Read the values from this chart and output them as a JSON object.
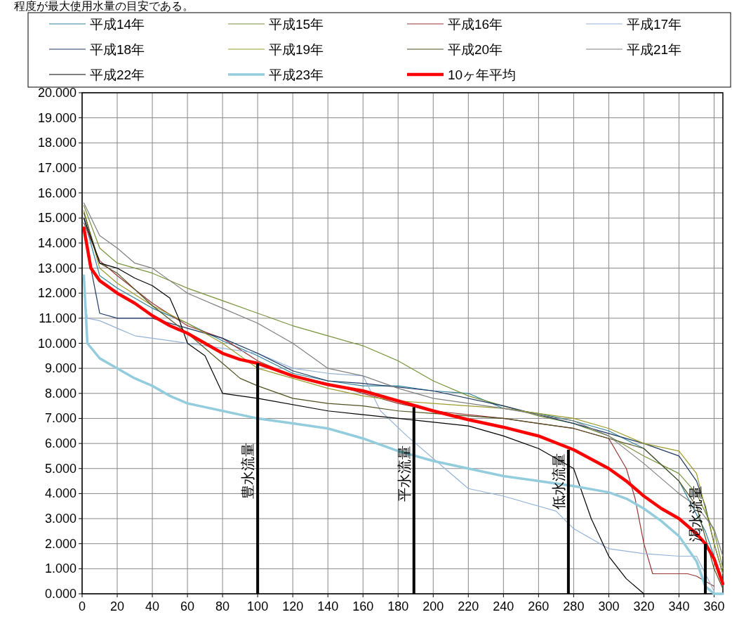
{
  "chart_data": {
    "type": "line",
    "annotations": [
      "程度が最大使用水量の目安である。",
      {
        "text": "豊水流量",
        "x": 100,
        "y": 4.9
      },
      {
        "text": "平水流量",
        "x": 189,
        "y": 4.8
      },
      {
        "text": "低水流量",
        "x": 277,
        "y": 4.5
      },
      {
        "text": "渇水流量",
        "x": 355,
        "y": 3.2
      }
    ],
    "xlim": [
      0,
      365
    ],
    "xticks": [
      0,
      20,
      40,
      60,
      80,
      100,
      120,
      140,
      160,
      180,
      200,
      220,
      240,
      260,
      280,
      300,
      320,
      340,
      360
    ],
    "ylim": [
      0,
      20
    ],
    "yticks": [
      {
        "value": 0,
        "label": "0.000"
      },
      {
        "value": 1,
        "label": "1.000"
      },
      {
        "value": 2,
        "label": "2.000"
      },
      {
        "value": 3,
        "label": "3.000"
      },
      {
        "value": 4,
        "label": "4.000"
      },
      {
        "value": 5,
        "label": "5.000"
      },
      {
        "value": 6,
        "label": "6.000"
      },
      {
        "value": 7,
        "label": "7.000"
      },
      {
        "value": 8,
        "label": "8.000"
      },
      {
        "value": 9,
        "label": "9.000"
      },
      {
        "value": 10,
        "label": "10.000"
      },
      {
        "value": 11,
        "label": "11.000"
      },
      {
        "value": 12,
        "label": "12.000"
      },
      {
        "value": 13,
        "label": "13.000"
      },
      {
        "value": 14,
        "label": "14.000"
      },
      {
        "value": 15,
        "label": "15.000"
      },
      {
        "value": 16,
        "label": "16.000"
      },
      {
        "value": 17,
        "label": "17.000"
      },
      {
        "value": 18,
        "label": "18.000"
      },
      {
        "value": 19,
        "label": "19.000"
      },
      {
        "value": 20,
        "label": "20.000"
      }
    ],
    "grid": true,
    "legend": "top",
    "marker": "none",
    "line_style": "solid",
    "series": [
      {
        "type": "bar",
        "color": "#000000",
        "x": [
          100,
          189,
          277,
          355
        ],
        "values": [
          9.2,
          7.45,
          5.75,
          2.0
        ]
      },
      {
        "name": "平成14年",
        "color": "#31849b",
        "x": [
          1,
          10,
          20,
          40,
          60,
          80,
          100,
          120,
          140,
          160,
          180,
          200,
          220,
          240,
          260,
          280,
          300,
          320,
          340,
          355,
          360,
          365
        ],
        "values": [
          15.0,
          12.7,
          12.2,
          11.4,
          10.8,
          10.1,
          9.5,
          8.8,
          8.5,
          8.3,
          8.3,
          8.1,
          8.0,
          7.4,
          7.2,
          6.9,
          6.5,
          5.8,
          4.5,
          2.5,
          1.5,
          0.3
        ]
      },
      {
        "name": "平成15年",
        "color": "#77933c",
        "x": [
          1,
          10,
          20,
          40,
          60,
          80,
          100,
          120,
          140,
          160,
          180,
          200,
          220,
          240,
          260,
          280,
          300,
          320,
          340,
          350,
          360,
          365
        ],
        "values": [
          15.5,
          13.8,
          13.2,
          12.8,
          12.2,
          11.7,
          11.2,
          10.7,
          10.3,
          9.9,
          9.3,
          8.5,
          7.9,
          7.5,
          7.1,
          6.8,
          6.3,
          5.5,
          4.8,
          4.0,
          2.5,
          1.0
        ]
      },
      {
        "name": "平成16年",
        "color": "#953735",
        "x": [
          1,
          10,
          20,
          40,
          60,
          80,
          100,
          120,
          140,
          160,
          180,
          200,
          240,
          280,
          300,
          310,
          315,
          320,
          325,
          345,
          350,
          360
        ],
        "values": [
          14.8,
          13.3,
          12.7,
          11.6,
          10.7,
          10.2,
          9.3,
          8.7,
          8.4,
          8.0,
          7.6,
          7.3,
          7.0,
          6.6,
          6.2,
          5.0,
          3.8,
          2.0,
          0.8,
          0.8,
          0.7,
          0.3
        ]
      },
      {
        "name": "平成17年",
        "color": "#95b3d7",
        "x": [
          1,
          3,
          10,
          20,
          30,
          40,
          50,
          60,
          80,
          100,
          120,
          140,
          160,
          170,
          185,
          200,
          220,
          240,
          260,
          270,
          280,
          300,
          320,
          340,
          350,
          360
        ],
        "values": [
          12.0,
          11.0,
          10.9,
          10.6,
          10.3,
          10.2,
          10.1,
          10.0,
          9.8,
          9.6,
          9.0,
          8.8,
          8.7,
          7.3,
          6.3,
          5.4,
          4.2,
          3.9,
          3.5,
          3.3,
          2.6,
          1.8,
          1.6,
          1.5,
          1.5,
          0.1
        ]
      },
      {
        "name": "平成18年",
        "color": "#1f3864",
        "x": [
          1,
          5,
          10,
          20,
          40,
          60,
          80,
          100,
          120,
          140,
          160,
          200,
          240,
          280,
          300,
          320,
          340,
          350,
          355,
          360,
          365
        ],
        "values": [
          14.5,
          13.0,
          11.2,
          11.0,
          11.0,
          10.6,
          10.2,
          9.6,
          8.9,
          8.5,
          8.4,
          8.1,
          7.5,
          6.8,
          6.4,
          6.0,
          5.5,
          4.5,
          3.5,
          2.0,
          0.8
        ]
      },
      {
        "name": "平成19年",
        "color": "#9c9c2c",
        "x": [
          1,
          10,
          20,
          40,
          60,
          80,
          100,
          120,
          140,
          160,
          180,
          200,
          240,
          280,
          300,
          320,
          340,
          350,
          360,
          365
        ],
        "values": [
          15.3,
          13.0,
          12.4,
          11.5,
          10.8,
          10.0,
          9.0,
          8.6,
          8.2,
          7.9,
          7.7,
          7.6,
          7.4,
          7.0,
          6.6,
          6.0,
          5.7,
          4.8,
          2.0,
          0.8
        ]
      },
      {
        "name": "平成20年",
        "color": "#4f4f20",
        "x": [
          1,
          10,
          20,
          40,
          60,
          80,
          90,
          100,
          120,
          140,
          160,
          180,
          200,
          240,
          280,
          300,
          320,
          340,
          350,
          360,
          365
        ],
        "values": [
          15.2,
          13.2,
          12.8,
          11.5,
          10.4,
          9.2,
          8.6,
          8.3,
          7.8,
          7.6,
          7.5,
          7.3,
          7.2,
          7.0,
          6.6,
          6.2,
          5.8,
          4.5,
          3.5,
          1.0,
          0.2
        ]
      },
      {
        "name": "平成21年",
        "color": "#7f7f7f",
        "x": [
          1,
          10,
          20,
          30,
          40,
          50,
          60,
          80,
          100,
          120,
          140,
          160,
          180,
          200,
          240,
          280,
          300,
          320,
          340,
          350,
          360,
          365
        ],
        "values": [
          15.6,
          14.3,
          13.8,
          13.2,
          13.0,
          12.5,
          12.0,
          11.4,
          10.8,
          10.0,
          9.0,
          8.7,
          8.2,
          7.8,
          7.4,
          6.9,
          6.3,
          5.2,
          4.0,
          3.5,
          2.6,
          1.5
        ]
      },
      {
        "name": "平成22年",
        "color": "#000000",
        "x": [
          1,
          10,
          20,
          30,
          40,
          50,
          55,
          60,
          70,
          80,
          100,
          140,
          180,
          220,
          240,
          260,
          280,
          290,
          300,
          310,
          320
        ],
        "values": [
          15.0,
          13.2,
          13.0,
          12.6,
          12.3,
          11.8,
          11.0,
          10.0,
          9.5,
          8.0,
          7.8,
          7.3,
          7.0,
          6.7,
          6.3,
          5.8,
          5.0,
          3.0,
          1.5,
          0.6,
          0.0
        ]
      },
      {
        "name": "平成23年",
        "color": "#93cddd",
        "x": [
          1,
          3,
          10,
          20,
          30,
          40,
          50,
          60,
          70,
          80,
          90,
          100,
          120,
          140,
          160,
          180,
          200,
          220,
          240,
          260,
          280,
          300,
          310,
          320,
          330,
          340,
          350,
          355,
          360,
          365
        ],
        "values": [
          12.7,
          10.0,
          9.4,
          9.0,
          8.6,
          8.3,
          7.9,
          7.6,
          7.45,
          7.3,
          7.15,
          7.0,
          6.8,
          6.6,
          6.2,
          5.7,
          5.3,
          5.0,
          4.7,
          4.5,
          4.3,
          4.05,
          3.8,
          3.4,
          2.9,
          2.3,
          1.3,
          0.3,
          0.0,
          0.0
        ]
      },
      {
        "name": "10ヶ年平均",
        "color": "#ff0000",
        "x": [
          1,
          5,
          10,
          20,
          30,
          40,
          50,
          60,
          70,
          80,
          90,
          100,
          120,
          140,
          160,
          180,
          200,
          220,
          240,
          260,
          280,
          300,
          310,
          320,
          330,
          340,
          350,
          355,
          360,
          365
        ],
        "values": [
          14.6,
          13.0,
          12.5,
          12.0,
          11.6,
          11.1,
          10.7,
          10.4,
          10.0,
          9.6,
          9.35,
          9.2,
          8.7,
          8.35,
          8.1,
          7.7,
          7.3,
          6.95,
          6.65,
          6.3,
          5.75,
          5.0,
          4.5,
          3.9,
          3.4,
          3.0,
          2.4,
          2.0,
          1.4,
          0.4
        ]
      }
    ]
  }
}
